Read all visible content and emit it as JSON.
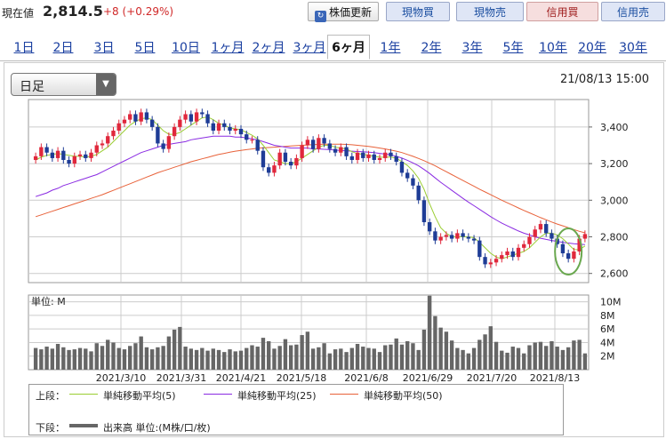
{
  "header": {
    "price_label": "現在値",
    "price_value": "2,814.5",
    "price_change": "+8 (+0.29%)",
    "buttons": {
      "refresh": "株価更新",
      "buy": "現物買",
      "sell": "現物売",
      "margin_buy": "信用買",
      "margin_sell": "信用売"
    }
  },
  "tabs": [
    "1日",
    "2日",
    "3日",
    "5日",
    "10日",
    "1ヶ月",
    "2ヶ月",
    "3ヶ月",
    "6ヶ月",
    "1年",
    "2年",
    "3年",
    "5年",
    "10年",
    "20年",
    "30年"
  ],
  "active_tab": "6ヶ月",
  "selector": {
    "value": "日足"
  },
  "datetime": "21/08/13 15:00",
  "colors": {
    "up": "#e0283c",
    "down": "#1e3c96",
    "ma5": "#9acd32",
    "ma25": "#8a2be2",
    "ma50": "#e8623a",
    "highlight": "#6aa84f"
  },
  "legend": {
    "upper_label": "上段：",
    "ma5": "単純移動平均(5)",
    "ma25": "単純移動平均(25)",
    "ma50": "単純移動平均(50)",
    "lower_label": "下段：",
    "volume": "出来高 単位:(M株/口/枚)"
  },
  "chart_data": {
    "type": "candlestick",
    "x_tick_labels": [
      "2021/3/10",
      "2021/3/31",
      "2021/4/21",
      "2021/5/18",
      "2021/6/8",
      "2021/6/29",
      "2021/7/20",
      "2021/8/13"
    ],
    "price_ylim": [
      2550,
      3550
    ],
    "price_ticks": [
      "3,400",
      "3,200",
      "3,000",
      "2,800",
      "2,600"
    ],
    "volume_unit_label": "単位: M",
    "volume_ticks": [
      "10M",
      "8M",
      "6M",
      "4M",
      "2M"
    ],
    "volume_ylim": [
      0,
      11
    ],
    "close": [
      3240,
      3290,
      3260,
      3230,
      3270,
      3220,
      3200,
      3240,
      3250,
      3230,
      3260,
      3300,
      3310,
      3350,
      3380,
      3420,
      3440,
      3470,
      3430,
      3480,
      3440,
      3400,
      3310,
      3280,
      3350,
      3400,
      3440,
      3470,
      3430,
      3480,
      3470,
      3420,
      3380,
      3420,
      3400,
      3380,
      3390,
      3360,
      3330,
      3330,
      3270,
      3180,
      3150,
      3190,
      3260,
      3210,
      3190,
      3230,
      3300,
      3330,
      3280,
      3340,
      3310,
      3280,
      3260,
      3290,
      3240,
      3220,
      3260,
      3230,
      3250,
      3220,
      3230,
      3260,
      3240,
      3210,
      3150,
      3120,
      3080,
      3000,
      2880,
      2830,
      2780,
      2800,
      2810,
      2790,
      2820,
      2800,
      2790,
      2780,
      2690,
      2650,
      2660,
      2680,
      2700,
      2720,
      2690,
      2740,
      2760,
      2800,
      2840,
      2870,
      2820,
      2790,
      2760,
      2710,
      2680,
      2720,
      2790,
      2815
    ],
    "volume": [
      3.2,
      3.0,
      3.4,
      3.1,
      3.8,
      3.3,
      2.9,
      3.0,
      3.2,
      3.1,
      2.7,
      3.9,
      3.5,
      4.4,
      4.0,
      3.2,
      3.0,
      3.5,
      3.9,
      4.9,
      3.3,
      3.0,
      3.3,
      3.5,
      4.9,
      5.9,
      6.3,
      3.4,
      3.1,
      2.9,
      3.2,
      2.8,
      3.1,
      2.9,
      2.6,
      3.0,
      2.7,
      2.8,
      3.2,
      3.6,
      3.4,
      4.7,
      4.2,
      3.1,
      3.5,
      4.5,
      3.6,
      3.7,
      5.1,
      5.6,
      3.1,
      3.3,
      3.9,
      2.4,
      3.0,
      3.1,
      2.6,
      3.2,
      3.8,
      3.4,
      3.2,
      3.1,
      2.6,
      3.6,
      3.7,
      4.6,
      3.7,
      4.2,
      3.9,
      2.9,
      5.9,
      10.9,
      7.9,
      6.2,
      5.6,
      4.3,
      3.2,
      2.9,
      2.4,
      3.2,
      4.4,
      5.2,
      6.4,
      4.1,
      2.8,
      2.5,
      3.4,
      3.2,
      2.4,
      3.6,
      4.0,
      4.1,
      3.5,
      4.2,
      3.4,
      2.9,
      3.3,
      4.3,
      4.4,
      2.4
    ],
    "ma5": [
      3220,
      3235,
      3245,
      3250,
      3255,
      3250,
      3245,
      3240,
      3240,
      3235,
      3240,
      3250,
      3270,
      3290,
      3320,
      3350,
      3380,
      3410,
      3430,
      3445,
      3450,
      3440,
      3410,
      3380,
      3360,
      3360,
      3370,
      3390,
      3410,
      3430,
      3450,
      3455,
      3440,
      3420,
      3410,
      3395,
      3390,
      3385,
      3370,
      3355,
      3335,
      3300,
      3260,
      3220,
      3210,
      3200,
      3200,
      3210,
      3230,
      3250,
      3270,
      3290,
      3300,
      3300,
      3290,
      3285,
      3280,
      3265,
      3255,
      3250,
      3245,
      3240,
      3235,
      3235,
      3235,
      3230,
      3210,
      3190,
      3160,
      3120,
      3060,
      2980,
      2910,
      2850,
      2820,
      2800,
      2800,
      2800,
      2800,
      2795,
      2770,
      2740,
      2710,
      2690,
      2680,
      2690,
      2700,
      2710,
      2720,
      2740,
      2770,
      2800,
      2820,
      2820,
      2810,
      2790,
      2760,
      2730,
      2730,
      2750
    ],
    "ma25": [
      3020,
      3030,
      3040,
      3055,
      3065,
      3080,
      3090,
      3100,
      3110,
      3120,
      3130,
      3140,
      3155,
      3170,
      3185,
      3200,
      3215,
      3230,
      3245,
      3260,
      3270,
      3280,
      3290,
      3300,
      3305,
      3310,
      3315,
      3320,
      3330,
      3335,
      3340,
      3345,
      3350,
      3350,
      3350,
      3350,
      3345,
      3345,
      3340,
      3335,
      3330,
      3320,
      3310,
      3300,
      3295,
      3290,
      3285,
      3285,
      3285,
      3285,
      3280,
      3280,
      3278,
      3276,
      3274,
      3272,
      3270,
      3268,
      3266,
      3265,
      3262,
      3260,
      3256,
      3252,
      3248,
      3240,
      3230,
      3218,
      3204,
      3188,
      3168,
      3146,
      3122,
      3098,
      3076,
      3054,
      3032,
      3010,
      2990,
      2970,
      2950,
      2930,
      2910,
      2892,
      2875,
      2860,
      2846,
      2832,
      2820,
      2810,
      2800,
      2792,
      2786,
      2780,
      2775,
      2770,
      2766,
      2762,
      2760,
      2758
    ],
    "ma50": [
      2910,
      2920,
      2930,
      2940,
      2950,
      2960,
      2970,
      2980,
      2990,
      3000,
      3010,
      3020,
      3030,
      3042,
      3054,
      3066,
      3078,
      3090,
      3102,
      3114,
      3126,
      3138,
      3150,
      3160,
      3170,
      3180,
      3190,
      3200,
      3210,
      3218,
      3226,
      3234,
      3242,
      3250,
      3256,
      3262,
      3268,
      3272,
      3276,
      3280,
      3284,
      3286,
      3288,
      3290,
      3292,
      3294,
      3296,
      3298,
      3300,
      3302,
      3304,
      3305,
      3306,
      3306,
      3306,
      3306,
      3305,
      3303,
      3300,
      3297,
      3294,
      3290,
      3285,
      3280,
      3274,
      3268,
      3260,
      3250,
      3240,
      3228,
      3216,
      3202,
      3188,
      3172,
      3156,
      3140,
      3124,
      3108,
      3092,
      3076,
      3060,
      3045,
      3030,
      3015,
      3000,
      2986,
      2972,
      2958,
      2944,
      2931,
      2918,
      2905,
      2893,
      2881,
      2870,
      2860,
      2850,
      2840,
      2830,
      2822
    ]
  }
}
